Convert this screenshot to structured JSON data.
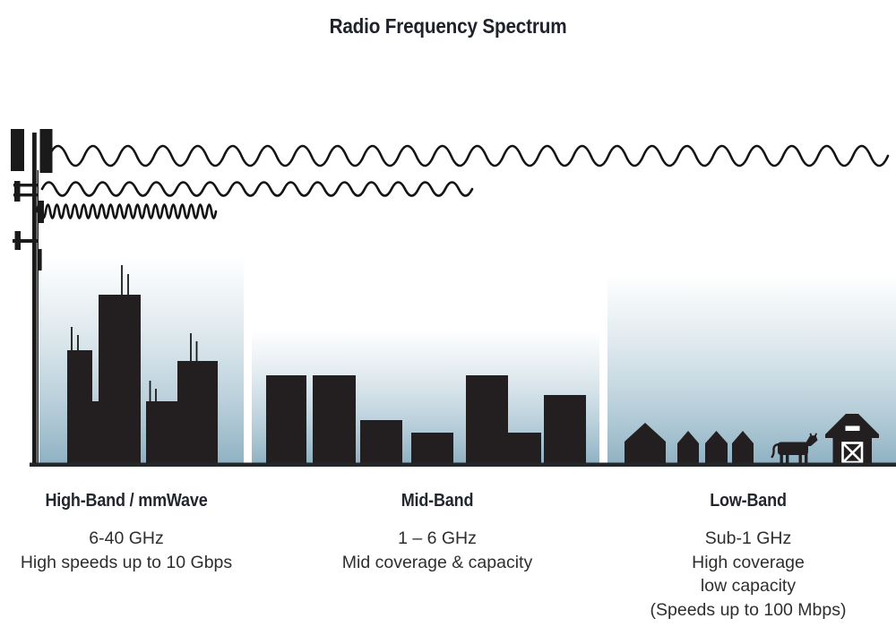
{
  "title": "Radio Frequency Spectrum",
  "bands": [
    {
      "name": "High-Band / mmWave",
      "lines": [
        "6-40 GHz",
        "High speeds up to 10 Gbps"
      ]
    },
    {
      "name": "Mid-Band",
      "lines": [
        "1 – 6 GHz",
        "Mid coverage & capacity"
      ]
    },
    {
      "name": "Low-Band",
      "lines": [
        "Sub-1 GHz",
        "High coverage",
        "low capacity",
        "(Speeds up to 100 Mbps)"
      ]
    }
  ],
  "illustration": {
    "tower": "cell-tower",
    "waves": [
      {
        "band": "low",
        "wavelength": "long",
        "reach": "far"
      },
      {
        "band": "mid",
        "wavelength": "medium",
        "reach": "medium"
      },
      {
        "band": "high",
        "wavelength": "short",
        "reach": "short"
      }
    ],
    "scenes": [
      "city-skyline",
      "mid-rise-buildings",
      "rural-houses-cow-barn"
    ]
  },
  "colors": {
    "ink": "#231f20",
    "sky_bottom": "#8fb2c2",
    "baseline": "#24272a",
    "text": "#302e2d"
  }
}
